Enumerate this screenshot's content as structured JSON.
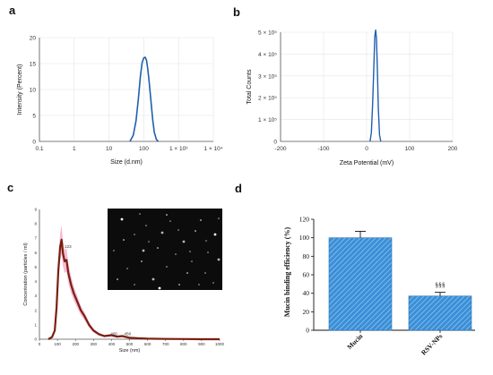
{
  "panel_labels": {
    "a": "a",
    "b": "b",
    "c": "c",
    "d": "d"
  },
  "chart_data": [
    {
      "id": "a",
      "type": "line",
      "xlabel": "Size (d.nm)",
      "ylabel": "Intensity (Percent)",
      "xscale": "log",
      "xlim": [
        0.1,
        10000
      ],
      "ylim": [
        0,
        20
      ],
      "xticks": [
        "0.1",
        "1",
        "10",
        "100",
        "1 × 10³",
        "1 × 10⁴"
      ],
      "yticks": [
        "0",
        "5",
        "10",
        "15",
        "20"
      ],
      "grid": true,
      "color": "#1f5fb0",
      "x": [
        40,
        50,
        60,
        70,
        80,
        90,
        100,
        110,
        120,
        130,
        140,
        160,
        180,
        200,
        230,
        260
      ],
      "y": [
        0,
        1.2,
        4.0,
        8.3,
        12.5,
        15.2,
        16.1,
        16.2,
        15.6,
        14.0,
        12.0,
        8.0,
        4.3,
        1.8,
        0.4,
        0
      ]
    },
    {
      "id": "b",
      "type": "line",
      "xlabel": "Zeta Potential (mV)",
      "ylabel": "Total Counts",
      "xlim": [
        -200,
        200
      ],
      "ylim": [
        0,
        500000
      ],
      "xticks": [
        "-200",
        "-100",
        "0",
        "100",
        "200"
      ],
      "yticks": [
        "0",
        "1 × 10⁵",
        "2 × 10⁵",
        "3 × 10⁵",
        "4 × 10⁵",
        "5 × 10⁵"
      ],
      "grid": true,
      "color": "#1f5fb0",
      "x": [
        8,
        11,
        14,
        17,
        19,
        21,
        23,
        25,
        27,
        30,
        33
      ],
      "y": [
        0,
        40000,
        170000,
        360000,
        480000,
        510000,
        470000,
        330000,
        160000,
        30000,
        0
      ]
    },
    {
      "id": "c",
      "type": "line",
      "xlabel": "Size (nm)",
      "ylabel": "Concentration (particles / ml)",
      "xlim": [
        0,
        1000
      ],
      "xticks": [
        "0",
        "100",
        "200",
        "300",
        "400",
        "500",
        "600",
        "700",
        "800",
        "900",
        "1000"
      ],
      "yticks": [
        "0",
        "1",
        "2",
        "3",
        "4",
        "5",
        "6",
        "7",
        "8",
        "9"
      ],
      "peak_labels": [
        {
          "x": 125,
          "y": 6.4,
          "text": "123"
        },
        {
          "x": 380,
          "y": 0.35,
          "text": "400"
        },
        {
          "x": 455,
          "y": 0.35,
          "text": "458"
        }
      ],
      "line_color": "#7a1f0f",
      "band_color": "#f2a6c8",
      "x": [
        50,
        70,
        85,
        95,
        105,
        115,
        123,
        130,
        140,
        150,
        160,
        175,
        190,
        210,
        230,
        250,
        275,
        300,
        330,
        360,
        400,
        430,
        460,
        500,
        550,
        600,
        700,
        800,
        900,
        1000
      ],
      "y": [
        0,
        0.15,
        0.6,
        2.2,
        4.8,
        6.4,
        6.9,
        6.0,
        5.4,
        5.5,
        4.6,
        3.8,
        3.2,
        2.6,
        2.0,
        1.6,
        1.0,
        0.6,
        0.35,
        0.22,
        0.28,
        0.18,
        0.22,
        0.1,
        0.06,
        0.04,
        0.02,
        0.01,
        0.0,
        0.0
      ]
    },
    {
      "id": "d",
      "type": "bar",
      "ylabel": "Mucin binding efficiency (%)",
      "categories": [
        "Mucin",
        "RSV-NPs"
      ],
      "values": [
        100,
        37
      ],
      "errors": [
        7,
        4
      ],
      "annotations": [
        "",
        "§§§"
      ],
      "ylim": [
        0,
        120
      ],
      "yticks": [
        "0",
        "20",
        "40",
        "60",
        "80",
        "100",
        "120"
      ],
      "bar_color": "#3a8fd8",
      "hatch_color": "#ffffff"
    }
  ]
}
